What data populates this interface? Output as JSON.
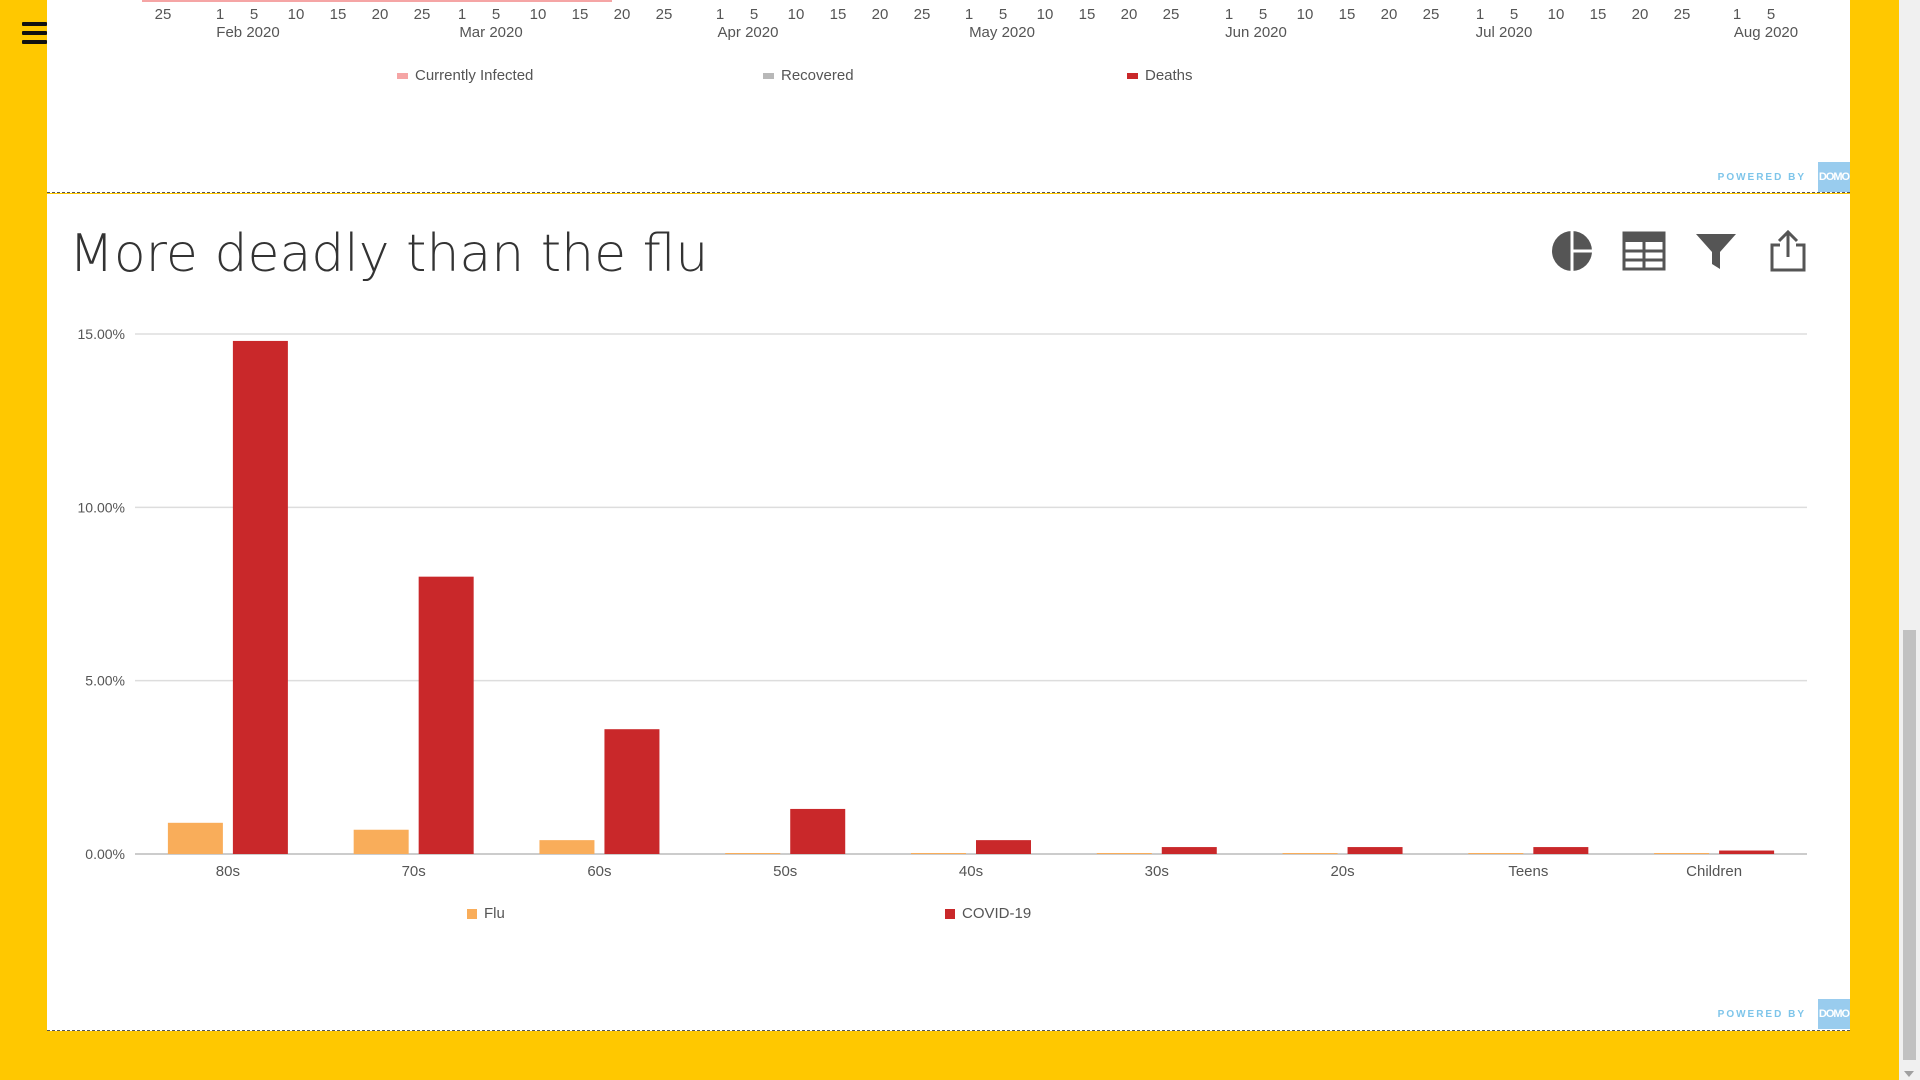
{
  "menu_icon": "hamburger-menu-icon",
  "top_chart": {
    "day_ticks": [
      "25",
      "1",
      "5",
      "10",
      "15",
      "20",
      "25",
      "1",
      "5",
      "10",
      "15",
      "20",
      "25",
      "1",
      "5",
      "10",
      "15",
      "20",
      "25",
      "1",
      "5",
      "10",
      "15",
      "20",
      "25",
      "1",
      "5",
      "10",
      "15",
      "20",
      "25",
      "1",
      "5",
      "10",
      "15",
      "20",
      "25",
      "1",
      "5"
    ],
    "month_ticks": [
      "Feb 2020",
      "Mar 2020",
      "Apr 2020",
      "May 2020",
      "Jun 2020",
      "Jul 2020",
      "Aug 2020"
    ],
    "legend": [
      {
        "label": "Currently Infected",
        "color": "#f5a5a5"
      },
      {
        "label": "Recovered",
        "color": "#b8b8b8"
      },
      {
        "label": "Deaths",
        "color": "#c9282a"
      }
    ],
    "powered_by": "POWERED BY",
    "logo_text": "DOMO"
  },
  "bottom_card": {
    "title": "More deadly than the flu",
    "tools": [
      "pie-chart-icon",
      "table-icon",
      "filter-icon",
      "share-icon"
    ],
    "powered_by": "POWERED BY",
    "logo_text": "DOMO"
  },
  "chart_data": {
    "type": "bar",
    "title": "More deadly than the flu",
    "categories": [
      "80s",
      "70s",
      "60s",
      "50s",
      "40s",
      "30s",
      "20s",
      "Teens",
      "Children"
    ],
    "series": [
      {
        "name": "Flu",
        "color": "#f9ad5a",
        "values": [
          0.9,
          0.7,
          0.4,
          0.02,
          0.02,
          0.02,
          0.02,
          0.02,
          0.01
        ]
      },
      {
        "name": "COVID-19",
        "color": "#c9282a",
        "values": [
          14.8,
          8.0,
          3.6,
          1.3,
          0.4,
          0.2,
          0.2,
          0.2,
          0.1
        ]
      }
    ],
    "ylim": [
      0,
      15
    ],
    "yticks": [
      "0.00%",
      "5.00%",
      "10.00%",
      "15.00%"
    ],
    "ytick_values": [
      0,
      5,
      10,
      15
    ],
    "grid": true,
    "legend_position": "bottom-left"
  }
}
